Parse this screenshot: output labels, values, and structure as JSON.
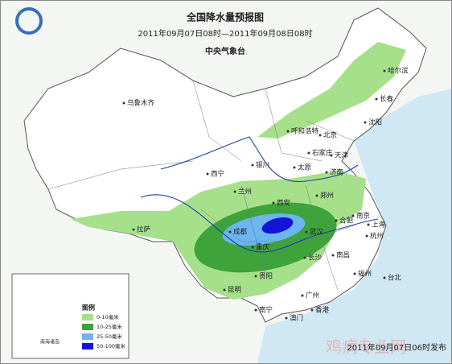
{
  "header": {
    "title": "全国降水量预报图",
    "period": "2011年09月07日08时—2011年09月08日08时",
    "issuer": "中央气象台"
  },
  "cities": [
    "乌鲁木齐",
    "哈尔滨",
    "长春",
    "沈阳",
    "呼和浩特",
    "北京",
    "天津",
    "石家庄",
    "太原",
    "银川",
    "西宁",
    "兰州",
    "济南",
    "郑州",
    "西安",
    "合肥",
    "南京",
    "上海",
    "杭州",
    "武汉",
    "成都",
    "重庆",
    "长沙",
    "南昌",
    "福州",
    "台北",
    "贵阳",
    "昆明",
    "南宁",
    "广州",
    "香港",
    "澳门",
    "拉萨"
  ],
  "legend": {
    "title": "图例",
    "items": [
      {
        "label": "0-10毫米",
        "color": "#a6e08a"
      },
      {
        "label": "10-25毫米",
        "color": "#3da33a"
      },
      {
        "label": "25-50毫米",
        "color": "#6cb5f0"
      },
      {
        "label": "50-100毫米",
        "color": "#1414d8"
      }
    ]
  },
  "inset": "南海诸岛",
  "footer": "2011年09月07日06时发布",
  "watermark": "鸡病专业网"
}
